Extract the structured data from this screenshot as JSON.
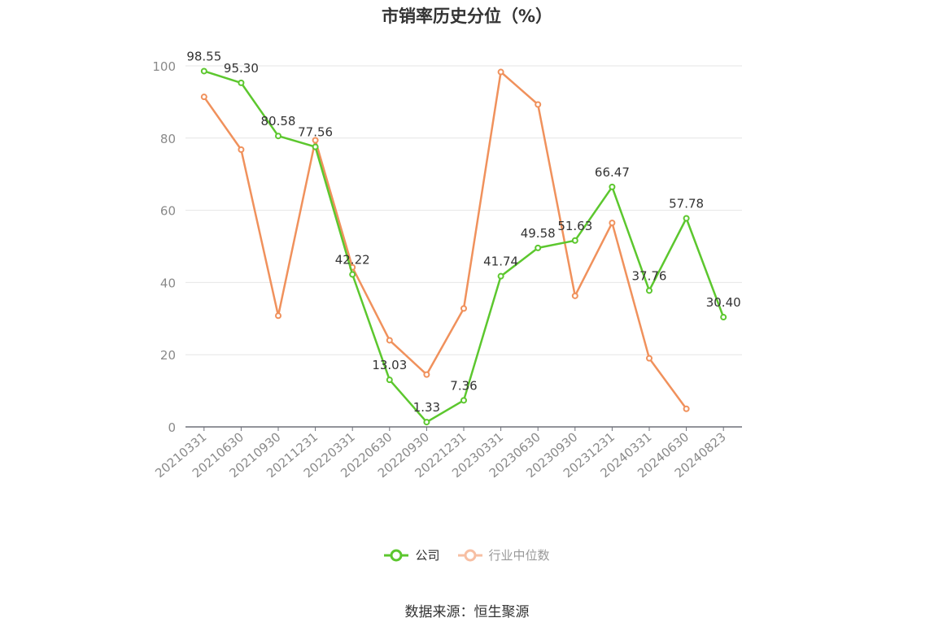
{
  "chart_data": {
    "type": "line",
    "title": "市销率历史分位（%）",
    "categories": [
      "20210331",
      "20210630",
      "20210930",
      "20211231",
      "20220331",
      "20220630",
      "20220930",
      "20221231",
      "20230331",
      "20230630",
      "20230930",
      "20231231",
      "20240331",
      "20240630",
      "20240823"
    ],
    "series": [
      {
        "name": "公司",
        "color": "#5cc72e",
        "values": [
          98.55,
          95.3,
          80.58,
          77.56,
          42.22,
          13.03,
          1.33,
          7.36,
          41.74,
          49.58,
          51.63,
          66.47,
          37.76,
          57.78,
          30.4
        ],
        "labels": [
          "98.55",
          "95.30",
          "80.58",
          "77.56",
          "42.22",
          "13.03",
          "1.33",
          "7.36",
          "41.74",
          "49.58",
          "51.63",
          "66.47",
          "37.76",
          "57.78",
          "30.40"
        ]
      },
      {
        "name": "行业中位数",
        "color": "#f0915c",
        "values": [
          91.4,
          76.8,
          30.8,
          79.4,
          44.2,
          24.0,
          14.5,
          32.8,
          98.3,
          89.3,
          36.3,
          56.5,
          19.0,
          5.0,
          null
        ]
      }
    ],
    "yticks": [
      "0",
      "20",
      "40",
      "60",
      "80",
      "100"
    ],
    "ylim": [
      0,
      100
    ],
    "grid": true,
    "legend_position": "bottom"
  },
  "legend": {
    "company_label": "公司",
    "industry_label": "行业中位数",
    "industry_text_color": "#999999",
    "company_text_color": "#333333",
    "industry_marker_color": "#f7bfa3"
  },
  "source": "数据来源：恒生聚源"
}
